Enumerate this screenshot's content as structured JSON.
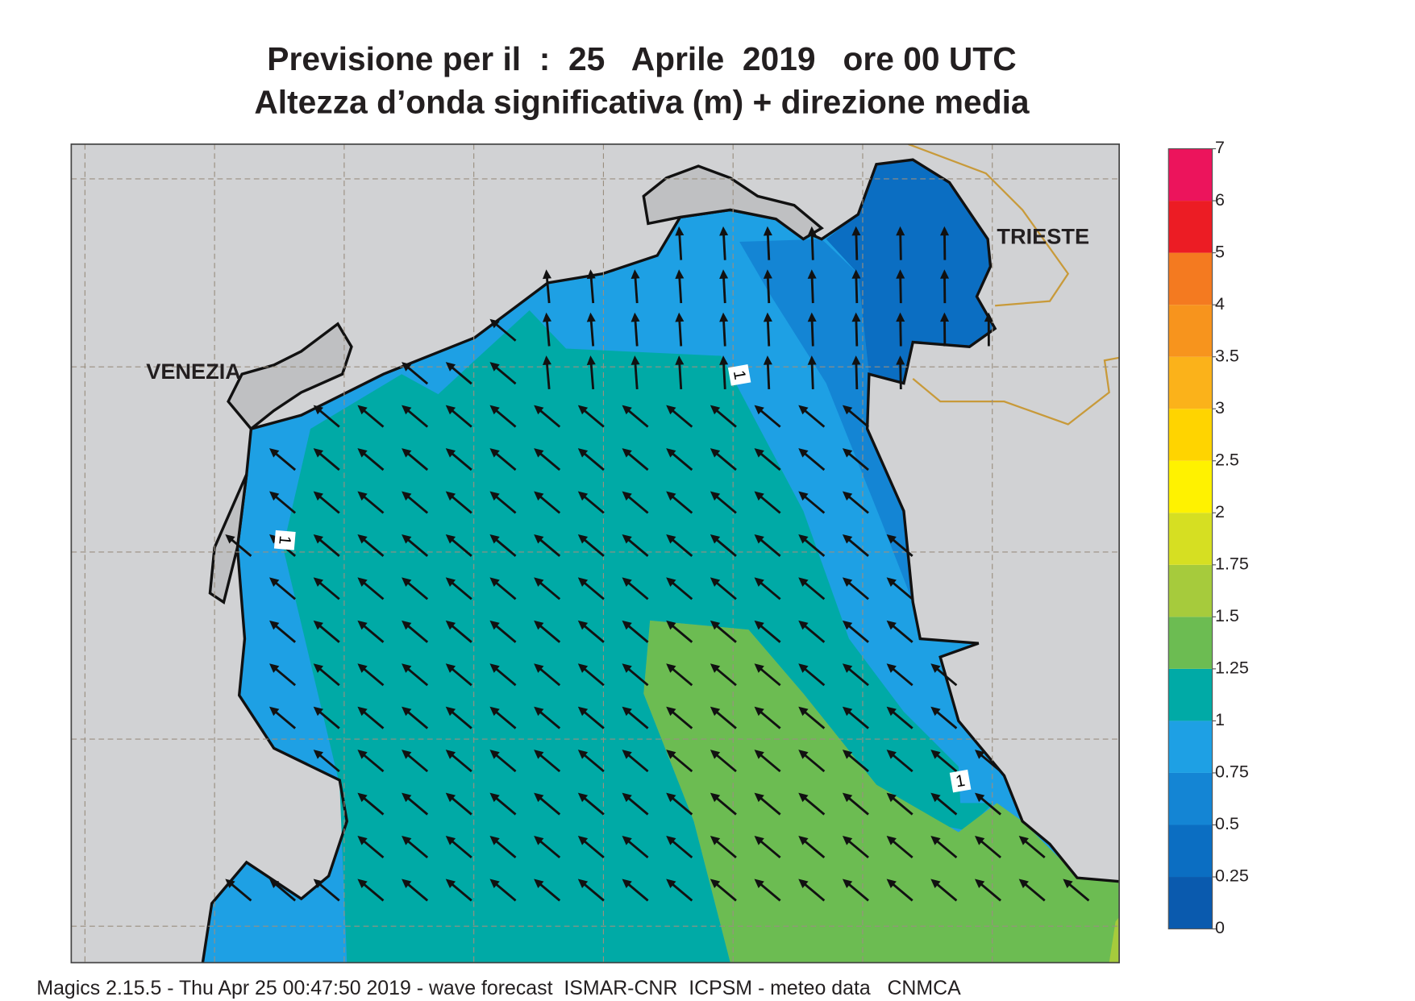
{
  "title": [
    "Previsione per il  :  25   Aprile  2019   ore 00 UTC",
    "Altezza d’onda significativa (m) + direzione media"
  ],
  "map": {
    "places": [
      "VENEZIA",
      "TRIESTE"
    ],
    "contour_labels": [
      "1",
      "1",
      "1"
    ]
  },
  "colorbar": {
    "ticks": [
      0,
      0.25,
      0.5,
      0.75,
      1,
      1.25,
      1.5,
      1.75,
      2,
      2.5,
      3,
      3.5,
      4,
      5,
      6,
      7
    ],
    "colors": [
      "#0a5aae",
      "#0b6ec2",
      "#1485d4",
      "#1ea0e4",
      "#00aaa6",
      "#6cbc52",
      "#a6cb3c",
      "#d6df22",
      "#fff200",
      "#ffd400",
      "#fbb21a",
      "#f7941d",
      "#f47a20",
      "#ec1c24",
      "#ec145c"
    ]
  },
  "footer": "Magics 2.15.5 - Thu Apr 25 00:47:50 2019 - wave forecast  ISMAR-CNR  ICPSM - meteo data   CNMCA"
}
